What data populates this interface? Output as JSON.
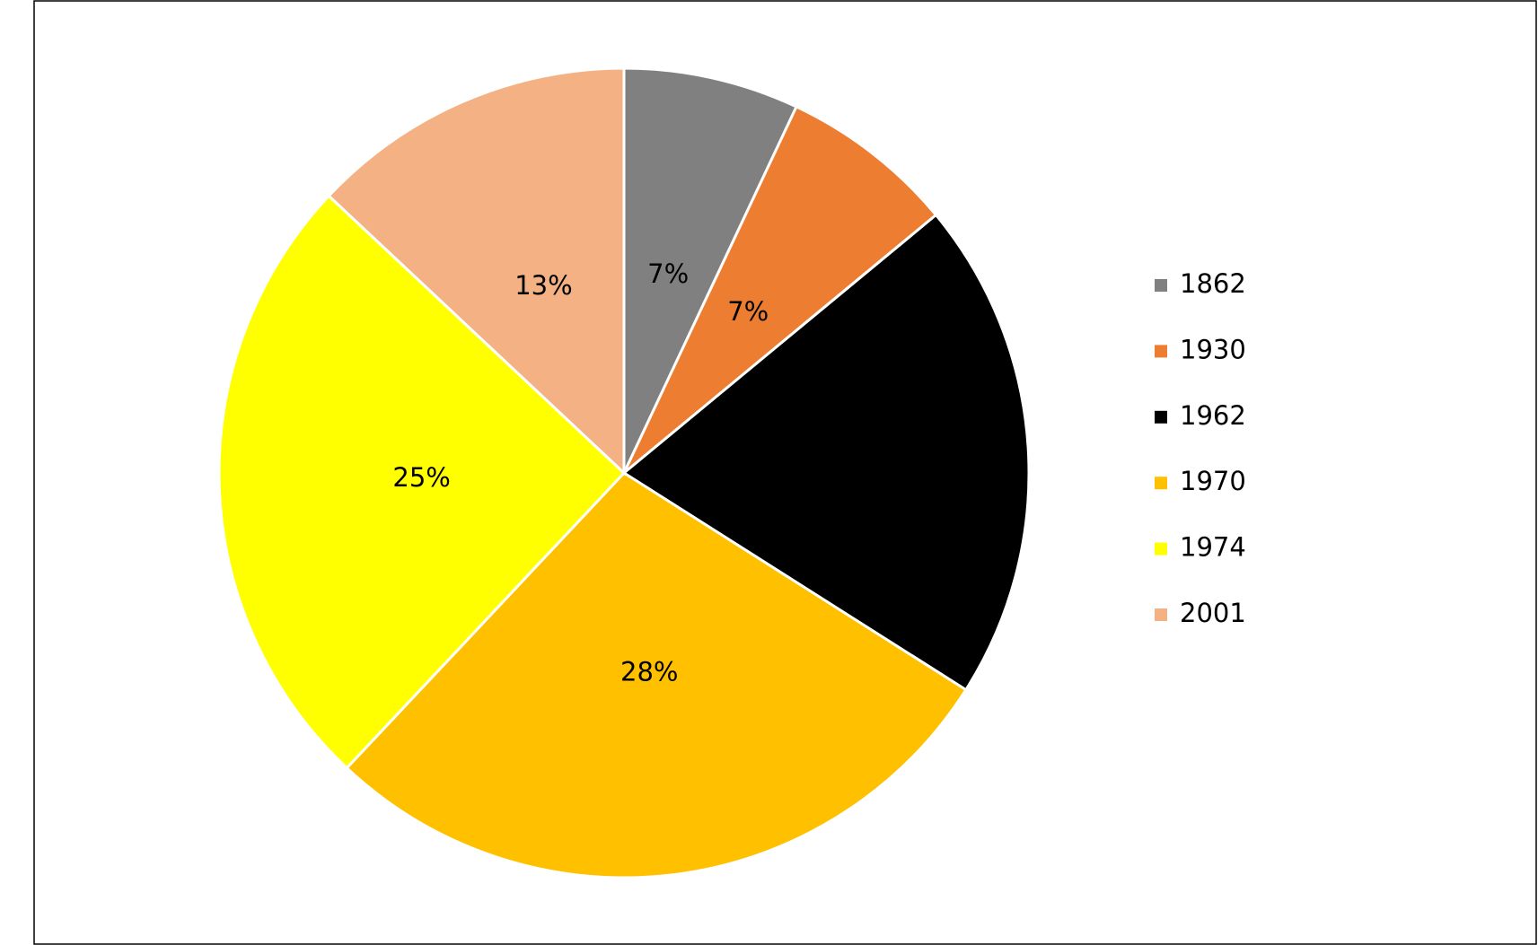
{
  "chart_data": {
    "type": "pie",
    "categories": [
      "1862",
      "1930",
      "1962",
      "1970",
      "1974",
      "2001"
    ],
    "values": [
      7,
      7,
      20,
      28,
      25,
      13
    ],
    "value_labels": [
      "7%",
      "7%",
      null,
      "28%",
      "25%",
      "13%"
    ],
    "colors": [
      "#808080",
      "#ed7d31",
      "#000000",
      "#ffc000",
      "#ffff00",
      "#f4b183"
    ],
    "legend": "right"
  }
}
